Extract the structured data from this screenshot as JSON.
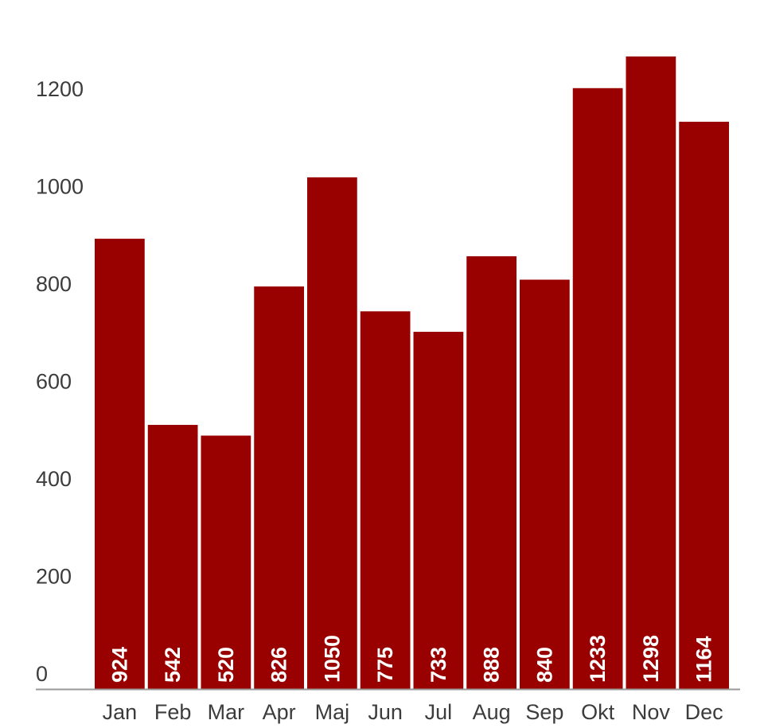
{
  "chart_data": {
    "type": "bar",
    "categories": [
      "Jan",
      "Feb",
      "Mar",
      "Apr",
      "Maj",
      "Jun",
      "Jul",
      "Aug",
      "Sep",
      "Okt",
      "Nov",
      "Dec"
    ],
    "values": [
      924,
      542,
      520,
      826,
      1050,
      775,
      733,
      888,
      840,
      1233,
      1298,
      1164
    ],
    "title": "",
    "xlabel": "",
    "ylabel": "",
    "ylim": [
      0,
      1300
    ],
    "yticks": [
      0,
      200,
      400,
      600,
      800,
      1000,
      1200
    ],
    "grid": false,
    "legend": "none",
    "data_labels": "inside-bottom-rotated",
    "colors": {
      "bar": "#990000",
      "axis": "#999999",
      "text": "#3c3c3c",
      "value_text": "#ffffff"
    }
  }
}
